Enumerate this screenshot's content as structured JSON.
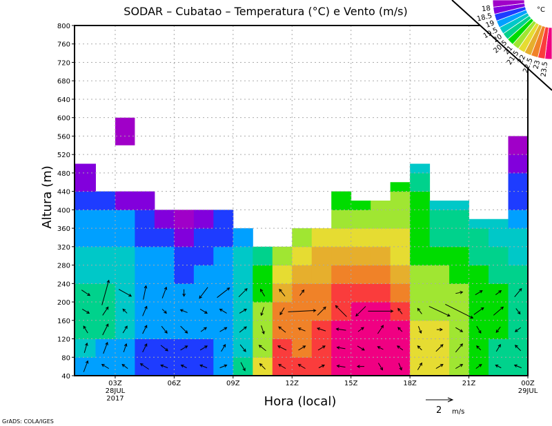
{
  "chart_data": {
    "type": "heatmap",
    "title": "SODAR – Cubatao – Temperatura (°C) e Vento (m/s)",
    "xlabel": "Hora (local)",
    "ylabel": "Altura (m)",
    "xlim": [
      0.93,
      24
    ],
    "ylim": [
      40,
      800
    ],
    "grid": true,
    "x_ticks": [
      {
        "hour": 3,
        "label": "03Z",
        "sub": [
          "28JUL",
          "2017"
        ]
      },
      {
        "hour": 6,
        "label": "06Z",
        "sub": []
      },
      {
        "hour": 9,
        "label": "09Z",
        "sub": []
      },
      {
        "hour": 12,
        "label": "12Z",
        "sub": []
      },
      {
        "hour": 15,
        "label": "15Z",
        "sub": []
      },
      {
        "hour": 18,
        "label": "18Z",
        "sub": []
      },
      {
        "hour": 21,
        "label": "21Z",
        "sub": []
      },
      {
        "hour": 24,
        "label": "00Z",
        "sub": [
          "29JUL"
        ]
      }
    ],
    "y_ticks": [
      40,
      80,
      120,
      160,
      200,
      240,
      280,
      320,
      360,
      400,
      440,
      480,
      520,
      560,
      600,
      640,
      680,
      720,
      760,
      800
    ],
    "levels": [
      18,
      18.5,
      19,
      19.5,
      20,
      20.5,
      21,
      21.5,
      22,
      22.5,
      23,
      23.5
    ],
    "level_labels": [
      "18",
      "18.5",
      "19",
      "19.5",
      "20",
      "20.5",
      "21",
      "21.5",
      "22",
      "22.5",
      "23",
      "23.5"
    ],
    "colors": [
      "#a000c8",
      "#8200dc",
      "#1e3cff",
      "#00a0ff",
      "#00c8c8",
      "#00d28c",
      "#00dc00",
      "#a0e632",
      "#e6dc32",
      "#e6af2d",
      "#f08228",
      "#fa3c3c",
      "#f00082"
    ],
    "legend_unit": "°C",
    "legend_position": "top-right",
    "column_hours": [
      1,
      2,
      3,
      4,
      5,
      6,
      7,
      8,
      9,
      10,
      11,
      12,
      13,
      14,
      15,
      16,
      17,
      18,
      19,
      20,
      21,
      22,
      23
    ],
    "row_bottoms_m": [
      40,
      80,
      120,
      160,
      200,
      240,
      280,
      320,
      360,
      400,
      440,
      480,
      520,
      560
    ],
    "column_tops_m": [
      500,
      440,
      440,
      440,
      400,
      400,
      400,
      400,
      360,
      320,
      320,
      360,
      360,
      440,
      420,
      420,
      460,
      500,
      420,
      420,
      380,
      380,
      560
    ],
    "temperature": [
      [
        19.3,
        19.3,
        19.3,
        18.8,
        18.8,
        18.8,
        18.8,
        19.3,
        20.3,
        21.8,
        23.3,
        23.3,
        23.3,
        23.8,
        23.8,
        23.8,
        23.8,
        21.8,
        21.8,
        21.3,
        20.8,
        20.3,
        20.3
      ],
      [
        19.8,
        19.3,
        19.3,
        18.8,
        18.8,
        18.8,
        18.8,
        19.3,
        19.8,
        21.3,
        23.3,
        22.8,
        23.3,
        23.8,
        23.8,
        23.8,
        23.8,
        21.8,
        21.8,
        21.3,
        20.8,
        20.3,
        20.3
      ],
      [
        20.3,
        20.3,
        19.8,
        19.3,
        19.3,
        19.3,
        19.3,
        19.3,
        19.8,
        21.3,
        22.8,
        22.8,
        23.3,
        23.8,
        23.8,
        23.8,
        23.8,
        21.8,
        21.8,
        21.3,
        20.8,
        20.8,
        20.3
      ],
      [
        20.3,
        20.3,
        19.8,
        19.3,
        19.3,
        19.3,
        19.3,
        19.3,
        19.8,
        21.3,
        22.8,
        22.8,
        22.8,
        23.3,
        23.8,
        23.8,
        23.3,
        21.3,
        21.3,
        21.3,
        20.8,
        20.8,
        20.3
      ],
      [
        20.3,
        20.3,
        19.8,
        19.3,
        19.3,
        19.3,
        19.3,
        19.3,
        19.8,
        20.8,
        22.3,
        22.8,
        22.8,
        23.3,
        23.3,
        23.3,
        22.8,
        21.3,
        21.3,
        21.3,
        20.8,
        20.8,
        20.3
      ],
      [
        19.8,
        19.8,
        19.8,
        19.3,
        19.3,
        18.8,
        19.3,
        19.3,
        19.8,
        20.8,
        21.8,
        22.3,
        22.3,
        22.8,
        22.8,
        22.8,
        22.3,
        21.3,
        21.3,
        20.8,
        20.8,
        20.3,
        20.3
      ],
      [
        19.8,
        19.8,
        19.8,
        19.3,
        19.3,
        18.8,
        18.8,
        19.3,
        19.8,
        20.3,
        21.3,
        21.8,
        22.3,
        22.3,
        22.3,
        22.3,
        21.8,
        20.8,
        20.8,
        20.8,
        20.3,
        20.3,
        19.8
      ],
      [
        19.3,
        19.3,
        19.3,
        18.8,
        18.8,
        18.3,
        18.8,
        18.8,
        19.3,
        null,
        null,
        21.3,
        21.8,
        21.8,
        21.8,
        21.8,
        21.8,
        20.8,
        20.3,
        20.3,
        20.3,
        19.8,
        19.8
      ],
      [
        19.3,
        19.3,
        19.3,
        18.8,
        18.3,
        17.8,
        18.3,
        18.8,
        null,
        null,
        null,
        null,
        null,
        21.3,
        21.3,
        21.3,
        21.3,
        20.8,
        20.3,
        20.3,
        19.8,
        19.8,
        19.3
      ],
      [
        18.8,
        18.8,
        18.3,
        18.3,
        null,
        null,
        null,
        null,
        null,
        null,
        null,
        null,
        null,
        20.8,
        20.8,
        21.3,
        21.3,
        20.8,
        19.8,
        19.8,
        null,
        null,
        18.8
      ],
      [
        18.3,
        null,
        null,
        null,
        null,
        null,
        null,
        null,
        null,
        null,
        null,
        null,
        null,
        null,
        null,
        null,
        20.8,
        20.3,
        null,
        null,
        null,
        null,
        18.8
      ],
      [
        18.3,
        null,
        null,
        null,
        null,
        null,
        null,
        null,
        null,
        null,
        null,
        null,
        null,
        null,
        null,
        null,
        null,
        19.8,
        null,
        null,
        null,
        null,
        18.3
      ],
      [
        null,
        null,
        null,
        null,
        null,
        null,
        null,
        null,
        null,
        null,
        null,
        null,
        null,
        null,
        null,
        null,
        null,
        null,
        null,
        null,
        null,
        null,
        17.8
      ],
      [
        null,
        null,
        null,
        null,
        null,
        null,
        null,
        null,
        null,
        null,
        null,
        null,
        null,
        null,
        null,
        null,
        null,
        null,
        null,
        null,
        null,
        null,
        null
      ]
    ],
    "islands": [
      {
        "hour_start": 3,
        "hour_end": 4,
        "z_bottom_m": 540,
        "z_top_m": 600,
        "temperature": 17.8
      }
    ],
    "wind": {
      "reference_speed": "2",
      "reference_unit": "m/s",
      "levels_m": [
        60,
        100,
        140,
        180,
        220
      ],
      "hours": [
        1.5,
        2.5,
        3.5,
        4.5,
        5.5,
        6.5,
        7.5,
        8.5,
        9.5,
        10.5,
        11.5,
        12.5,
        13.5,
        14.5,
        15.5,
        16.5,
        17.5,
        18.5,
        19.5,
        20.5,
        21.5,
        22.5,
        23.5
      ],
      "uv": [
        [
          [
            0.3,
            0.8
          ],
          [
            0.2,
            0.7
          ],
          [
            -0.3,
            0.5
          ],
          [
            0.5,
            -0.3
          ],
          [
            0.6,
            -0.4
          ]
        ],
        [
          [
            -0.5,
            0.3
          ],
          [
            0.3,
            0.8
          ],
          [
            0.4,
            0.8
          ],
          [
            0.4,
            0.6
          ],
          [
            0.5,
            1.8
          ]
        ],
        [
          [
            -0.4,
            0.3
          ],
          [
            0.2,
            0.6
          ],
          [
            0.3,
            0.5
          ],
          [
            -0.3,
            0.3
          ],
          [
            0.9,
            -0.5
          ]
        ],
        [
          [
            -0.6,
            0.4
          ],
          [
            0.3,
            0.6
          ],
          [
            0.3,
            0.6
          ],
          [
            0.3,
            0.7
          ],
          [
            0.2,
            1.0
          ]
        ],
        [
          [
            -0.5,
            0.2
          ],
          [
            0.5,
            -0.4
          ],
          [
            0.4,
            -0.5
          ],
          [
            0.3,
            -0.3
          ],
          [
            0.3,
            0.8
          ]
        ],
        [
          [
            -0.4,
            0.2
          ],
          [
            0.5,
            0.3
          ],
          [
            0.5,
            -0.5
          ],
          [
            -0.5,
            0.2
          ],
          [
            0,
            -0.5
          ]
        ],
        [
          [
            -0.5,
            0.2
          ],
          [
            0.5,
            0.3
          ],
          [
            0.4,
            0.3
          ],
          [
            0.5,
            -0.3
          ],
          [
            -0.6,
            -0.8
          ]
        ],
        [
          [
            0.5,
            0.2
          ],
          [
            0.3,
            0.5
          ],
          [
            0.5,
            0.3
          ],
          [
            -0.5,
            0.3
          ],
          [
            0.9,
            0.7
          ]
        ],
        [
          [
            0.3,
            -0.6
          ],
          [
            0.4,
            -0.5
          ],
          [
            0.5,
            0.4
          ],
          [
            0.5,
            0.3
          ],
          [
            0.6,
            0.6
          ]
        ],
        [
          [
            -0.4,
            0.4
          ],
          [
            -0.5,
            0.4
          ],
          [
            0.2,
            -0.6
          ],
          [
            -0.2,
            -0.6
          ],
          [
            -0.3,
            0.5
          ]
        ],
        [
          [
            -0.5,
            0.3
          ],
          [
            -0.6,
            0.3
          ],
          [
            -0.5,
            0.4
          ],
          [
            -0.3,
            -0.5
          ],
          [
            -0.4,
            0.5
          ]
        ],
        [
          [
            -0.5,
            0.3
          ],
          [
            0.5,
            0.3
          ],
          [
            -0.5,
            0.2
          ],
          [
            2.0,
            0.1
          ],
          [
            0.3,
            0.4
          ]
        ],
        [
          [
            0.4,
            0.2
          ],
          [
            0.5,
            0.3
          ],
          [
            -0.6,
            0.2
          ],
          [
            0.6,
            0.6
          ],
          [
            0,
            0
          ]
        ],
        [
          [
            -0.6,
            0.1
          ],
          [
            -0.6,
            0.1
          ],
          [
            -0.7,
            0.1
          ],
          [
            -0.8,
            0.8
          ],
          [
            0,
            0
          ]
        ],
        [
          [
            -0.5,
            0
          ],
          [
            0.5,
            -0.3
          ],
          [
            0.4,
            0.3
          ],
          [
            -0.7,
            -0.7
          ],
          [
            0,
            0
          ]
        ],
        [
          [
            0.3,
            -0.5
          ],
          [
            -0.4,
            0.2
          ],
          [
            0.4,
            0.6
          ],
          [
            1.8,
            0
          ],
          [
            0,
            0
          ]
        ],
        [
          [
            0.2,
            -0.5
          ],
          [
            -0.4,
            0.3
          ],
          [
            -0.3,
            0.3
          ],
          [
            -0.3,
            0.4
          ],
          [
            0,
            0
          ]
        ],
        [
          [
            0.3,
            0.5
          ],
          [
            -0.3,
            0.3
          ],
          [
            0.2,
            -0.5
          ],
          [
            -0.3,
            0.4
          ],
          [
            0,
            0
          ]
        ],
        [
          [
            0.5,
            0.3
          ],
          [
            0.5,
            0.5
          ],
          [
            0.4,
            0
          ],
          [
            1.5,
            -0.7
          ],
          [
            0,
            0
          ]
        ],
        [
          [
            0.5,
            0.3
          ],
          [
            0.5,
            0.6
          ],
          [
            0.5,
            -0.3
          ],
          [
            2.0,
            -1.0
          ],
          [
            0.5,
            0.1
          ]
        ],
        [
          [
            0.4,
            0.3
          ],
          [
            -0.3,
            0.3
          ],
          [
            0.3,
            -0.5
          ],
          [
            0.7,
            0.5
          ],
          [
            0.5,
            0.3
          ]
        ],
        [
          [
            -0.4,
            0.2
          ],
          [
            0.3,
            0.5
          ],
          [
            -0.3,
            -0.4
          ],
          [
            0.7,
            0.6
          ],
          [
            0.4,
            0.3
          ]
        ],
        [
          [
            -0.5,
            0.2
          ],
          [
            -0.4,
            0.4
          ],
          [
            -0.4,
            -0.3
          ],
          [
            0.3,
            -0.4
          ],
          [
            0.5,
            0.6
          ]
        ]
      ]
    },
    "credit": "GrADS: COLA/IGES"
  }
}
